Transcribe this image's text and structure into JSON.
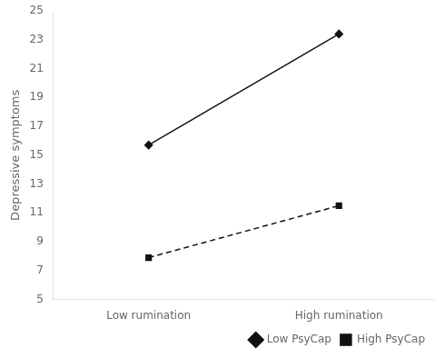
{
  "chart_data": {
    "type": "line",
    "categories": [
      "Low rumination",
      "High rumination"
    ],
    "series": [
      {
        "name": "Low PsyCap",
        "color": "#111111",
        "values": [
          15.7,
          23.4
        ],
        "marker": "diamond",
        "line_style": "solid"
      },
      {
        "name": "High PsyCap",
        "color": "#111111",
        "values": [
          7.9,
          11.5
        ],
        "marker": "square",
        "line_style": "dashed"
      }
    ],
    "ylabel": "Depressive symptoms",
    "ylim": [
      5,
      25
    ],
    "yticks": [
      5,
      7,
      9,
      11,
      13,
      15,
      17,
      19,
      21,
      23,
      25
    ],
    "grid": false,
    "legend": "lower right"
  }
}
